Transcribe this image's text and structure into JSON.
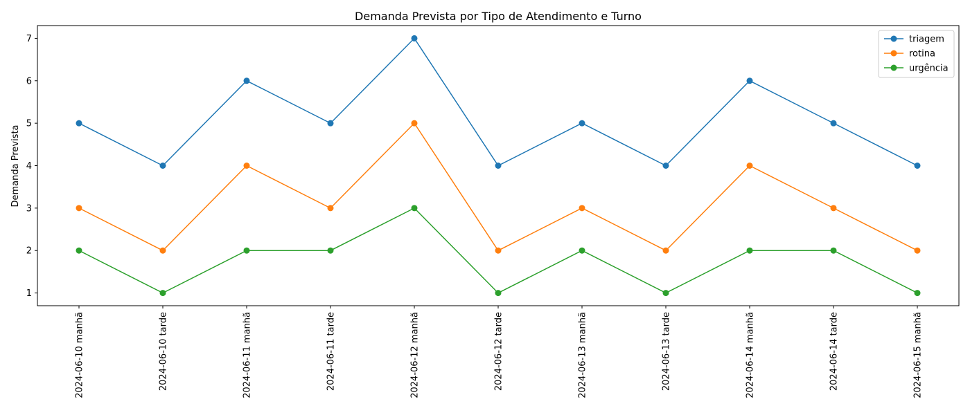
{
  "chart_data": {
    "type": "line",
    "title": "Demanda Prevista por Tipo de Atendimento e Turno",
    "xlabel": "",
    "ylabel": "Demanda Prevista",
    "categories": [
      "2024-06-10 manhã",
      "2024-06-10 tarde",
      "2024-06-11 manhã",
      "2024-06-11 tarde",
      "2024-06-12 manhã",
      "2024-06-12 tarde",
      "2024-06-13 manhã",
      "2024-06-13 tarde",
      "2024-06-14 manhã",
      "2024-06-14 tarde",
      "2024-06-15 manhã"
    ],
    "yticks": [
      1,
      2,
      3,
      4,
      5,
      6,
      7
    ],
    "ylim": [
      0.7,
      7.3
    ],
    "grid": false,
    "legend_position": "top-right",
    "series": [
      {
        "name": "triagem",
        "color": "#1f77b4",
        "values": [
          5,
          4,
          6,
          5,
          7,
          4,
          5,
          4,
          6,
          5,
          4
        ]
      },
      {
        "name": "rotina",
        "color": "#ff7f0e",
        "values": [
          3,
          2,
          4,
          3,
          5,
          2,
          3,
          2,
          4,
          3,
          2
        ]
      },
      {
        "name": "urgência",
        "color": "#2ca02c",
        "values": [
          2,
          1,
          2,
          2,
          3,
          1,
          2,
          1,
          2,
          2,
          1
        ]
      }
    ]
  }
}
